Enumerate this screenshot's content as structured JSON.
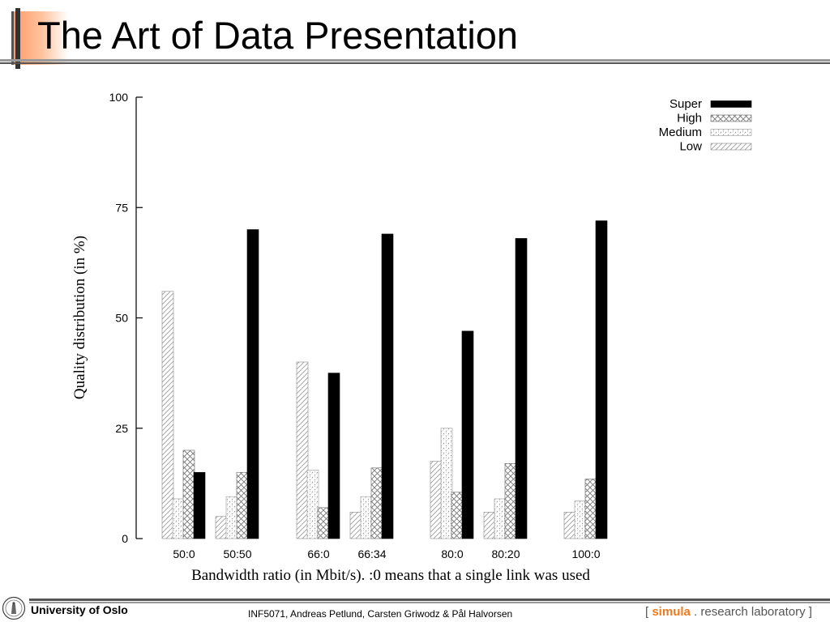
{
  "slide": {
    "title": "The Art of Data Presentation"
  },
  "footer": {
    "organization": "University of Oslo",
    "course": "INF5071, Andreas Petlund, Carsten Griwodz & Pål Halvorsen",
    "lab_bracket_open": "[",
    "lab_name": "simula",
    "lab_dot": ".",
    "lab_rest": "research laboratory",
    "lab_bracket_close": "]",
    "lab_accent_color": "#f07a1e"
  },
  "chart_data": {
    "type": "bar",
    "xlabel": "Bandwidth ratio (in Mbit/s). :0 means that a single link was used",
    "ylabel": "Quality distribution (in %)",
    "ylim": [
      0,
      100
    ],
    "yticks": [
      0,
      25,
      50,
      75,
      100
    ],
    "categories": [
      "50:0",
      "50:50",
      "66:0",
      "66:34",
      "80:0",
      "80:20",
      "100:0"
    ],
    "legend_position": "top-right",
    "grid": false,
    "series": [
      {
        "name": "Low",
        "pattern": "diagonal-hatch",
        "values": [
          56,
          5,
          40,
          6,
          17.5,
          6,
          6
        ]
      },
      {
        "name": "Medium",
        "pattern": "dotted-cross",
        "values": [
          9,
          9.5,
          15.5,
          9.5,
          25,
          9,
          8.5
        ]
      },
      {
        "name": "High",
        "pattern": "cross-hatch",
        "values": [
          20,
          15,
          7,
          16,
          10.5,
          17,
          13.5
        ]
      },
      {
        "name": "Super",
        "pattern": "solid",
        "values": [
          15,
          70,
          37.5,
          69,
          47,
          68,
          72
        ]
      }
    ],
    "legend_order": [
      "Super",
      "High",
      "Medium",
      "Low"
    ],
    "colors": {
      "solid": "#000000",
      "hatch": "#777777"
    }
  }
}
